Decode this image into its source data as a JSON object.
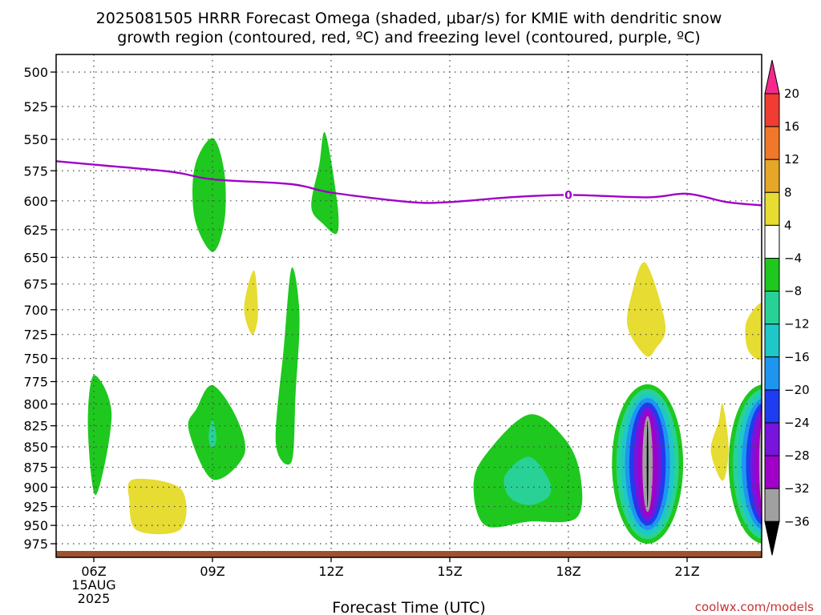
{
  "chart_data": {
    "type": "area",
    "title_line1": "2025081505 HRRR Forecast Omega (shaded, μbar/s) for KMIE with dendritic snow",
    "title_line2": "growth region (contoured, red, ºC) and freezing level (contoured, purple, ºC)",
    "xlabel": "Forecast Time (UTC)",
    "x_ticks": [
      {
        "label": "06Z",
        "hour": 6
      },
      {
        "label": "09Z",
        "hour": 9
      },
      {
        "label": "12Z",
        "hour": 12
      },
      {
        "label": "15Z",
        "hour": 15
      },
      {
        "label": "18Z",
        "hour": 18
      },
      {
        "label": "21Z",
        "hour": 21
      }
    ],
    "date_label_1": "15AUG",
    "date_label_2": "2025",
    "xlim": [
      4.95,
      22.95
    ],
    "y_ticks": [
      500,
      525,
      550,
      575,
      600,
      625,
      650,
      675,
      700,
      725,
      750,
      775,
      800,
      825,
      850,
      875,
      900,
      925,
      950,
      975
    ],
    "y_scale": "log",
    "ylim": [
      988,
      487
    ],
    "grid": true,
    "colorbar": {
      "levels": [
        "20",
        "16",
        "12",
        "8",
        "4",
        "−4",
        "−8",
        "−12",
        "−16",
        "−20",
        "−24",
        "−28",
        "−32",
        "−36"
      ],
      "colors": [
        "#f52a8c",
        "#f03c32",
        "#f07828",
        "#e6a628",
        "#e6dc32",
        "#ffffff",
        "#1ec81e",
        "#28d296",
        "#1ec8c8",
        "#1e96f0",
        "#1e3cf0",
        "#7814dc",
        "#a000c8",
        "#a0a0a0",
        "#000000"
      ]
    },
    "freezing_level": {
      "label": "0",
      "label_hour": 18,
      "color": "#a000c8",
      "points": [
        [
          4.95,
          567
        ],
        [
          6.0,
          570
        ],
        [
          8.0,
          576
        ],
        [
          9.0,
          582
        ],
        [
          11.0,
          586
        ],
        [
          12.0,
          593
        ],
        [
          14.0,
          601
        ],
        [
          15.0,
          601
        ],
        [
          16.5,
          597
        ],
        [
          18.0,
          595
        ],
        [
          20.0,
          597
        ],
        [
          21.0,
          594
        ],
        [
          22.0,
          601
        ],
        [
          22.95,
          604
        ]
      ]
    },
    "omega_regions": [
      {
        "level": "-8",
        "color": "#1ec81e",
        "points": [
          [
            6.0,
            768
          ],
          [
            6.45,
            812
          ],
          [
            6.05,
            910
          ],
          [
            5.85,
            825
          ]
        ]
      },
      {
        "level": "4",
        "color": "#e6dc32",
        "points": [
          [
            7.0,
            890
          ],
          [
            8.2,
            902
          ],
          [
            8.2,
            955
          ],
          [
            7.1,
            957
          ],
          [
            6.9,
            918
          ]
        ]
      },
      {
        "level": "-8",
        "color": "#1ec81e",
        "points": [
          [
            8.55,
            572
          ],
          [
            9.0,
            549
          ],
          [
            9.3,
            576
          ],
          [
            9.3,
            618
          ],
          [
            9.0,
            645
          ],
          [
            8.55,
            615
          ]
        ]
      },
      {
        "level": "-8",
        "color": "#1ec81e",
        "points": [
          [
            8.6,
            805
          ],
          [
            9.0,
            779
          ],
          [
            9.6,
            815
          ],
          [
            9.8,
            860
          ],
          [
            9.0,
            890
          ],
          [
            8.4,
            830
          ]
        ]
      },
      {
        "level": "-12",
        "color": "#28d296",
        "points": [
          [
            9.0,
            818
          ],
          [
            9.1,
            840
          ],
          [
            9.0,
            852
          ],
          [
            8.9,
            838
          ]
        ]
      },
      {
        "level": "4",
        "color": "#e6dc32",
        "points": [
          [
            10.05,
            662
          ],
          [
            10.15,
            705
          ],
          [
            10.0,
            725
          ],
          [
            9.8,
            698
          ]
        ]
      },
      {
        "level": "-8",
        "color": "#1ec81e",
        "points": [
          [
            11.0,
            660
          ],
          [
            11.2,
            705
          ],
          [
            11.1,
            790
          ],
          [
            11.0,
            868
          ],
          [
            10.6,
            845
          ],
          [
            10.8,
            740
          ]
        ]
      },
      {
        "level": "-8",
        "color": "#1ec81e",
        "points": [
          [
            11.85,
            545
          ],
          [
            12.15,
            600
          ],
          [
            12.15,
            628
          ],
          [
            11.8,
            620
          ],
          [
            11.5,
            605
          ],
          [
            11.7,
            570
          ]
        ]
      },
      {
        "level": "-8",
        "color": "#1ec81e",
        "points": [
          [
            17.0,
            812
          ],
          [
            17.9,
            840
          ],
          [
            18.3,
            885
          ],
          [
            18.2,
            940
          ],
          [
            17.0,
            945
          ],
          [
            15.9,
            950
          ],
          [
            15.6,
            900
          ],
          [
            15.9,
            860
          ]
        ]
      },
      {
        "level": "-12",
        "color": "#28d296",
        "points": [
          [
            17.0,
            862
          ],
          [
            17.5,
            890
          ],
          [
            17.5,
            912
          ],
          [
            17.0,
            923
          ],
          [
            16.5,
            912
          ],
          [
            16.4,
            885
          ]
        ]
      },
      {
        "level": "4",
        "color": "#e6dc32",
        "points": [
          [
            19.95,
            655
          ],
          [
            20.45,
            715
          ],
          [
            20.2,
            740
          ],
          [
            19.95,
            747
          ],
          [
            19.5,
            718
          ],
          [
            19.6,
            685
          ]
        ]
      },
      {
        "level": "4",
        "color": "#e6dc32",
        "points": [
          [
            22.95,
            694
          ],
          [
            22.95,
            748
          ],
          [
            22.55,
            742
          ],
          [
            22.5,
            712
          ]
        ]
      },
      {
        "level": "4",
        "color": "#e6dc32",
        "points": [
          [
            21.9,
            800
          ],
          [
            22.05,
            852
          ],
          [
            21.9,
            892
          ],
          [
            21.6,
            855
          ],
          [
            21.8,
            820
          ]
        ]
      }
    ],
    "omega_cores": [
      {
        "center_hour": 20.0,
        "top": 778,
        "bottom": 975,
        "half_width_hours": 0.9,
        "shrink_hours": 0.11,
        "shrink_rel": 0.057
      },
      {
        "center_hour": 22.95,
        "top": 778,
        "bottom": 975,
        "half_width_hours": 0.9,
        "shrink_hours": 0.11,
        "shrink_rel": 0.057
      }
    ],
    "core_colors": [
      "#1ec81e",
      "#28d296",
      "#1ec8c8",
      "#1e96f0",
      "#1e3cf0",
      "#7814dc",
      "#a000c8",
      "#a0a0a0",
      "#000000"
    ],
    "ground_color": "#a0522d"
  },
  "credit": "coolwx.com/models"
}
